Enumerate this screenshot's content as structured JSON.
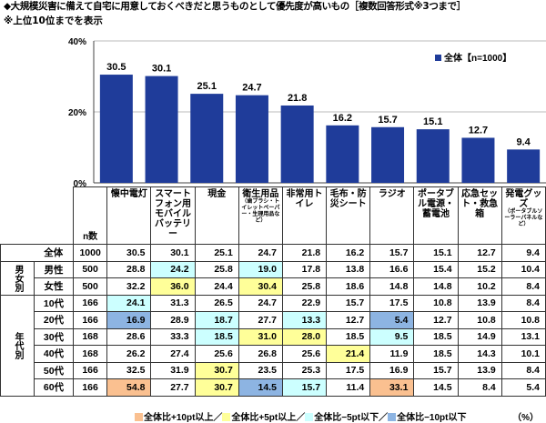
{
  "title": "◆大規模災害に備えて自宅に用意しておくべきだと思うものとして優先度が高いもの［複数回答形式※3つまで］",
  "subtitle": "※上位10位までを表示",
  "chart_data": {
    "type": "bar",
    "categories": [
      "懐中電灯",
      "スマートフォン用モバイルバッテリー",
      "現金",
      "衛生用品（歯ブラシ・トイレットペーパー・生理用品など）",
      "非常用トイレ",
      "毛布・防災シート",
      "ラジオ",
      "ポータブル電源・蓄電池",
      "応急セット・救急箱",
      "発電グッズ（ポータブルソーラーパネルなど）"
    ],
    "series": [
      {
        "name": "全体【n=1000】",
        "values": [
          30.5,
          30.1,
          25.1,
          24.7,
          21.8,
          16.2,
          15.7,
          15.1,
          12.7,
          9.4
        ]
      }
    ],
    "ylim": [
      0,
      40
    ],
    "yticks": [
      "0%",
      "20%",
      "40%"
    ],
    "grid": true,
    "legend": "top-right",
    "bar_color": "#1F3C9A"
  },
  "table": {
    "n_header": "n数",
    "headers": [
      {
        "main": "懐中電灯",
        "note": ""
      },
      {
        "main": "スマートフォン用モバイルバッテリー",
        "note": ""
      },
      {
        "main": "現金",
        "note": ""
      },
      {
        "main": "衛生用品",
        "note": "（歯ブラシ・トイレットペーパー・生理用品など）"
      },
      {
        "main": "非常用トイレ",
        "note": ""
      },
      {
        "main": "毛布・防災シート",
        "note": ""
      },
      {
        "main": "ラジオ",
        "note": ""
      },
      {
        "main": "ポータブル電源・蓄電池",
        "note": ""
      },
      {
        "main": "応急セット・救急箱",
        "note": ""
      },
      {
        "main": "発電グッズ",
        "note": "（ポータブルソーラーパネルなど）"
      }
    ],
    "groups": [
      {
        "label": "男女別",
        "rows": 2
      },
      {
        "label": "年代別",
        "rows": 6
      }
    ],
    "rows": [
      {
        "label": "全体",
        "n": "1000",
        "values": [
          "30.5",
          "30.1",
          "25.1",
          "24.7",
          "21.8",
          "16.2",
          "15.7",
          "15.1",
          "12.7",
          "9.4"
        ],
        "hl": [
          "",
          "",
          "",
          "",
          "",
          "",
          "",
          "",
          "",
          ""
        ]
      },
      {
        "label": "男性",
        "n": "500",
        "values": [
          "28.8",
          "24.2",
          "25.8",
          "19.0",
          "17.8",
          "13.8",
          "16.6",
          "15.4",
          "15.2",
          "10.4"
        ],
        "hl": [
          "",
          "m5",
          "",
          "m5",
          "",
          "",
          "",
          "",
          "",
          ""
        ]
      },
      {
        "label": "女性",
        "n": "500",
        "values": [
          "32.2",
          "36.0",
          "24.4",
          "30.4",
          "25.8",
          "18.6",
          "14.8",
          "14.8",
          "10.2",
          "8.4"
        ],
        "hl": [
          "",
          "p5",
          "",
          "p5",
          "",
          "",
          "",
          "",
          "",
          ""
        ]
      },
      {
        "label": "10代",
        "n": "166",
        "values": [
          "24.1",
          "31.3",
          "26.5",
          "24.7",
          "22.9",
          "15.7",
          "17.5",
          "10.8",
          "13.9",
          "8.4"
        ],
        "hl": [
          "m5",
          "",
          "",
          "",
          "",
          "",
          "",
          "",
          "",
          ""
        ]
      },
      {
        "label": "20代",
        "n": "166",
        "values": [
          "16.9",
          "28.9",
          "18.7",
          "27.7",
          "13.3",
          "12.7",
          "5.4",
          "12.7",
          "10.8",
          "10.8"
        ],
        "hl": [
          "m10",
          "",
          "m5",
          "",
          "m5",
          "",
          "m10",
          "",
          "",
          ""
        ]
      },
      {
        "label": "30代",
        "n": "168",
        "values": [
          "28.6",
          "33.3",
          "18.5",
          "31.0",
          "28.0",
          "18.5",
          "9.5",
          "18.5",
          "14.9",
          "13.1"
        ],
        "hl": [
          "",
          "",
          "m5",
          "p5",
          "p5",
          "",
          "m5",
          "",
          "",
          ""
        ]
      },
      {
        "label": "40代",
        "n": "168",
        "values": [
          "26.2",
          "27.4",
          "25.6",
          "26.8",
          "25.6",
          "21.4",
          "11.9",
          "18.5",
          "14.3",
          "10.1"
        ],
        "hl": [
          "",
          "",
          "",
          "",
          "",
          "p5",
          "",
          "",
          "",
          ""
        ]
      },
      {
        "label": "50代",
        "n": "166",
        "values": [
          "32.5",
          "31.9",
          "30.7",
          "23.5",
          "25.3",
          "17.5",
          "16.9",
          "15.7",
          "13.9",
          "8.4"
        ],
        "hl": [
          "",
          "",
          "p5",
          "",
          "",
          "",
          "",
          "",
          "",
          ""
        ]
      },
      {
        "label": "60代",
        "n": "166",
        "values": [
          "54.8",
          "27.7",
          "30.7",
          "14.5",
          "15.7",
          "11.4",
          "33.1",
          "14.5",
          "8.4",
          "5.4"
        ],
        "hl": [
          "p10",
          "",
          "p5",
          "m10",
          "m5",
          "",
          "p10",
          "",
          "",
          ""
        ]
      }
    ]
  },
  "legend": {
    "items": [
      {
        "label": "全体比+10pt以上／",
        "color": "#FAC090"
      },
      {
        "label": "全体比+5pt以上／",
        "color": "#FFFF99"
      },
      {
        "label": "全体比−5pt以下／",
        "color": "#CCFFFF"
      },
      {
        "label": "全体比−10pt以下",
        "color": "#8DB4E2"
      }
    ],
    "unit": "（%）"
  }
}
